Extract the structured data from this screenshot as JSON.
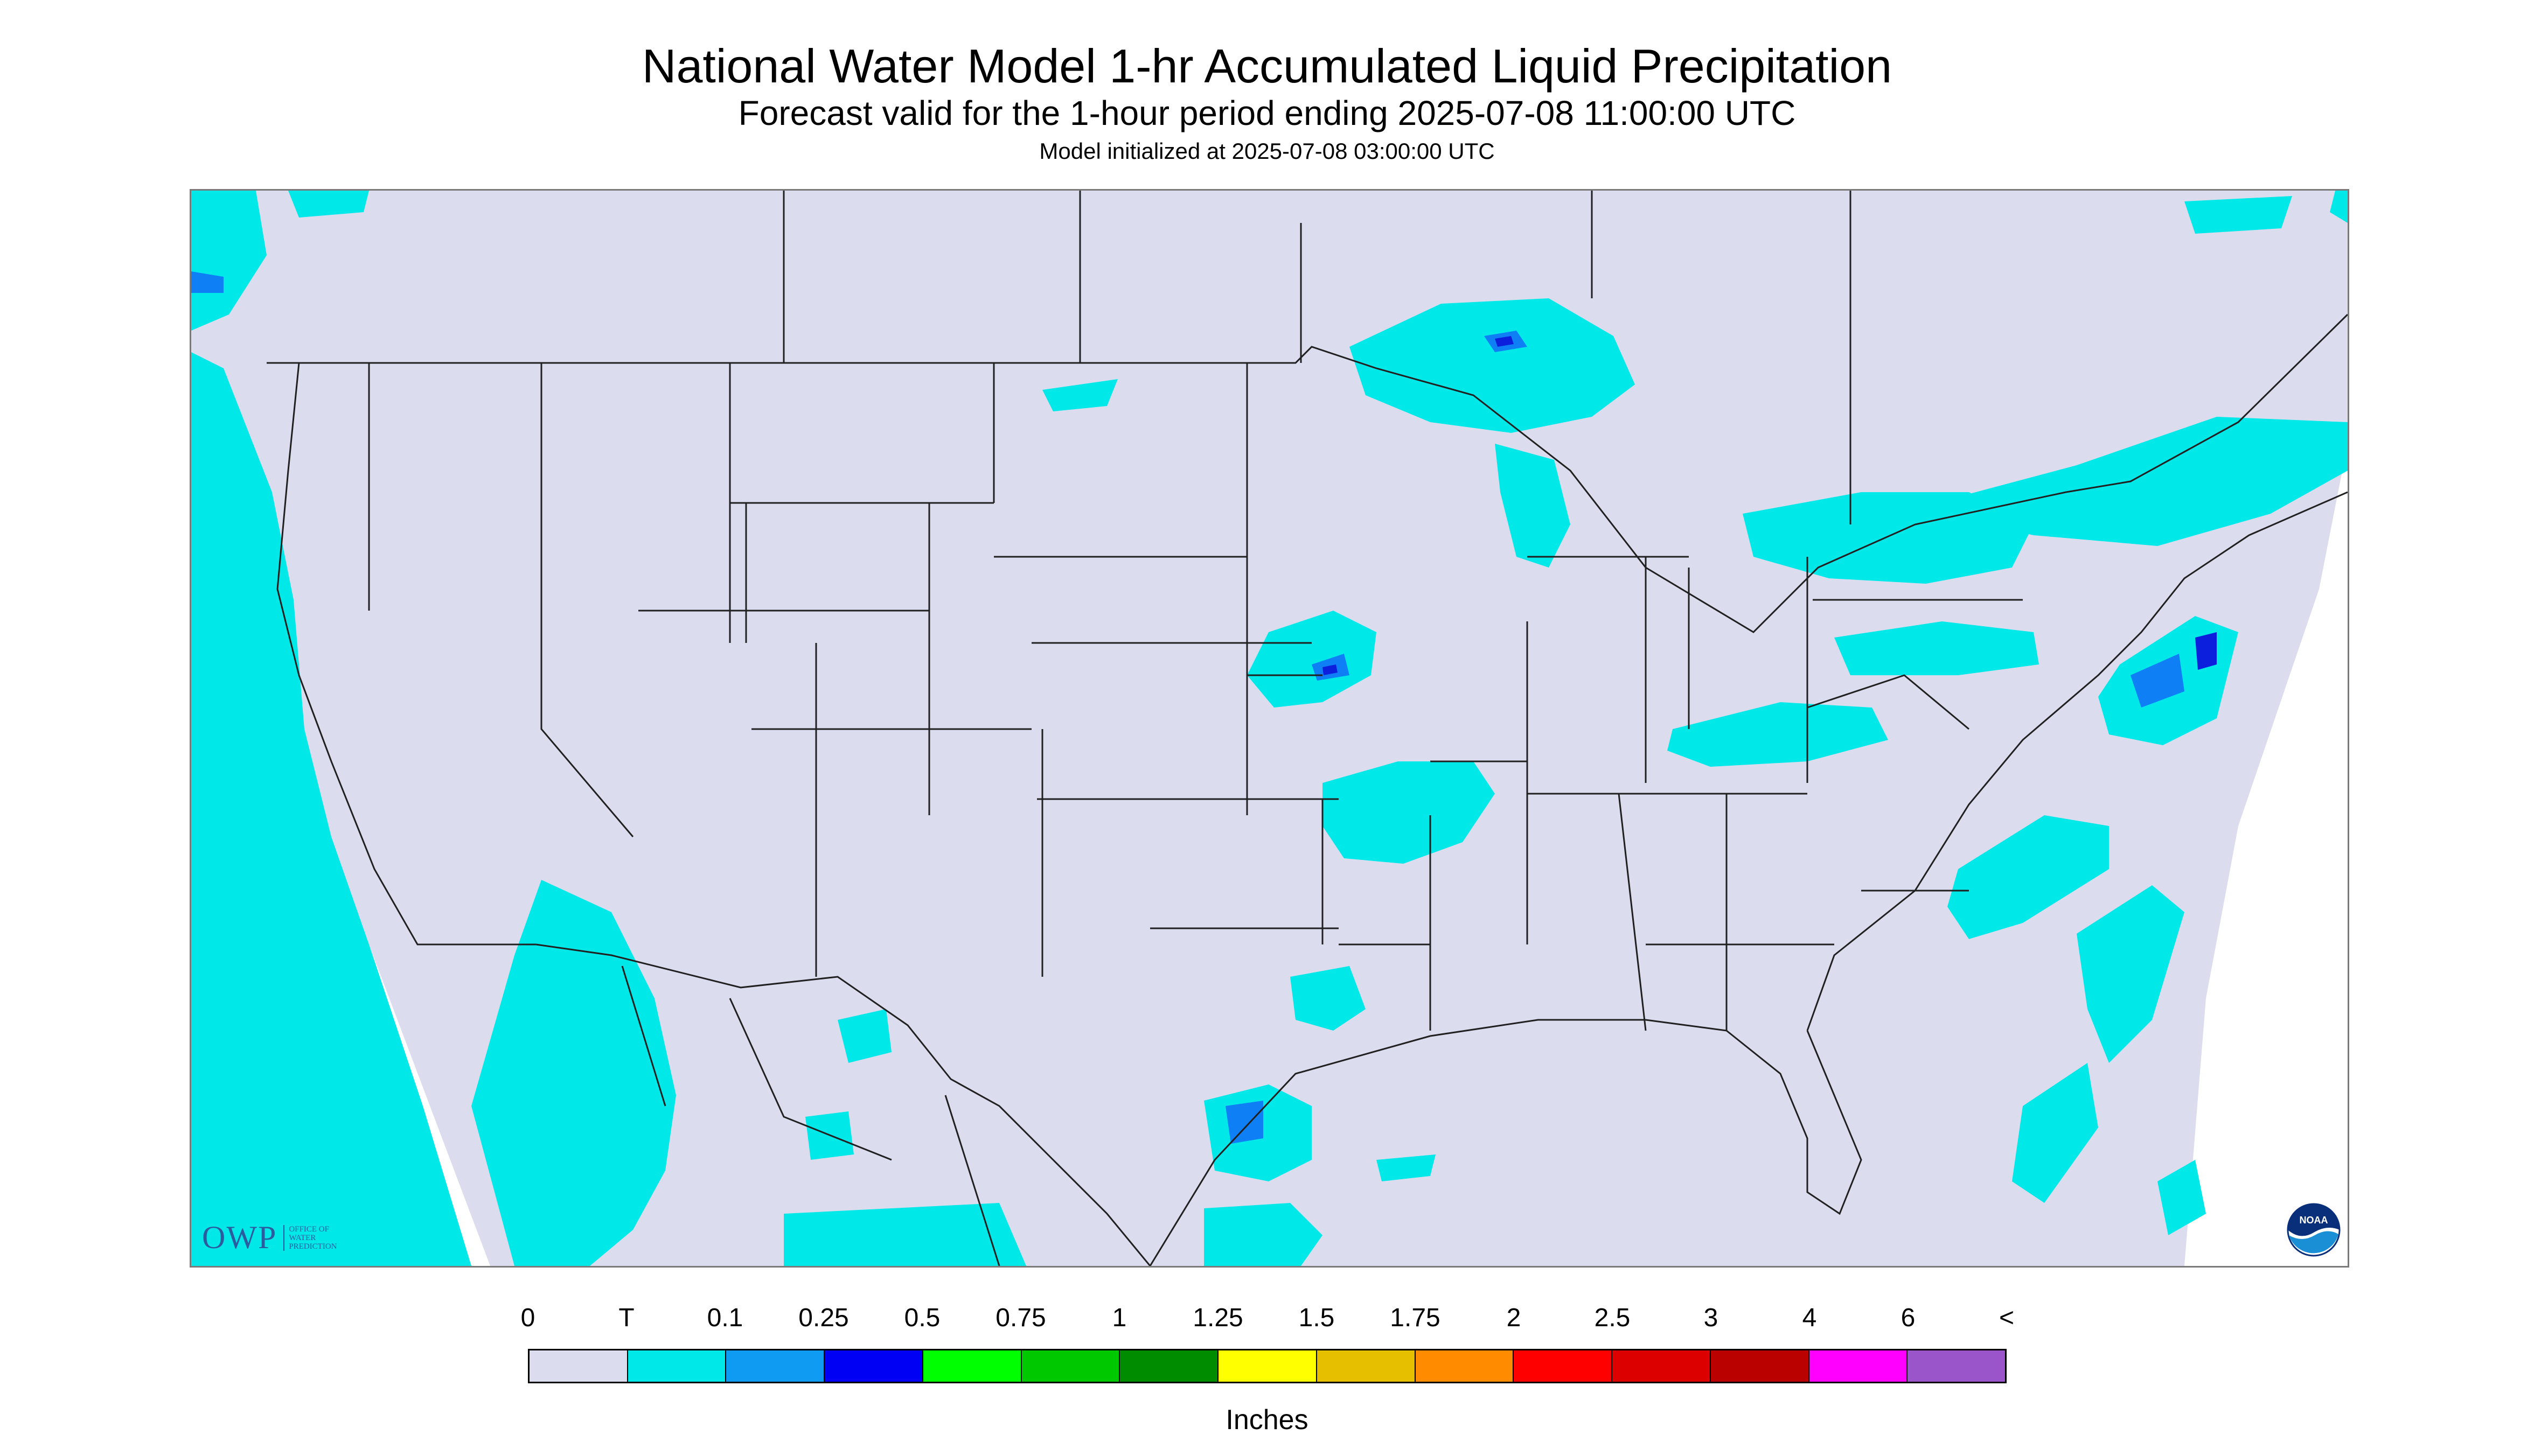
{
  "header": {
    "title": "National Water Model 1-hr Accumulated Liquid Precipitation",
    "subtitle": "Forecast valid for the 1-hour period ending 2025-07-08 11:00:00 UTC",
    "init_line": "Model initialized at 2025-07-08 03:00:00 UTC"
  },
  "map": {
    "background_color": "#dcdcef",
    "outside_color": "#ffffff",
    "precip_light_color": "#00e8e8",
    "precip_medium_color": "#0f7ff5",
    "precip_heavy_color": "#0b1fdc",
    "border_color": "#202020"
  },
  "logos": {
    "owp_text": "OWP",
    "owp_sub_1": "OFFICE OF",
    "owp_sub_2": "WATER",
    "owp_sub_3": "PREDICTION",
    "noaa_text": "NOAA"
  },
  "legend": {
    "ticks": [
      "0",
      "T",
      "0.1",
      "0.25",
      "0.5",
      "0.75",
      "1",
      "1.25",
      "1.5",
      "1.75",
      "2",
      "2.5",
      "3",
      "4",
      "6",
      "<"
    ],
    "colors": [
      "#dcdcef",
      "#00e8e8",
      "#0f9bf2",
      "#0000f5",
      "#00ff00",
      "#00c800",
      "#008c00",
      "#ffff00",
      "#e6c000",
      "#ff8c00",
      "#ff0000",
      "#dc0000",
      "#bb0000",
      "#ff00ff",
      "#9955c9"
    ],
    "unit": "Inches"
  }
}
